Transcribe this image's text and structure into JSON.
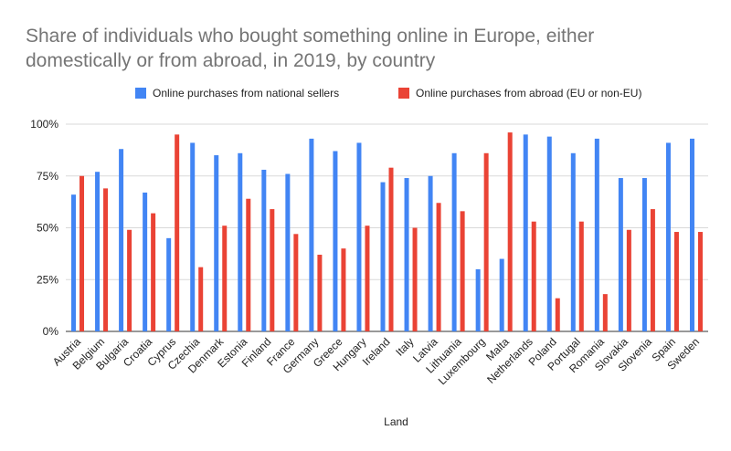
{
  "chart_data": {
    "type": "bar",
    "title": "Share of individuals who bought something online in Europe, either domestically or from abroad, in 2019, by country",
    "xlabel": "Land",
    "ylabel": "",
    "ylim": [
      0,
      100
    ],
    "yticks": [
      "0%",
      "25%",
      "50%",
      "75%",
      "100%"
    ],
    "ytick_values": [
      0,
      25,
      50,
      75,
      100
    ],
    "grid": true,
    "legend_position": "top",
    "categories": [
      "Austria",
      "Belgium",
      "Bulgaria",
      "Croatia",
      "Cyprus",
      "Czechia",
      "Denmark",
      "Estonia",
      "Finland",
      "France",
      "Germany",
      "Greece",
      "Hungary",
      "Ireland",
      "Italy",
      "Latvia",
      "Lithuania",
      "Luxembourg",
      "Malta",
      "Netherlands",
      "Poland",
      "Portugal",
      "Romania",
      "Slovakia",
      "Slovenia",
      "Spain",
      "Sweden"
    ],
    "series": [
      {
        "name": "Online purchases from national sellers",
        "color": "#4285f4",
        "values": [
          66,
          77,
          88,
          67,
          45,
          91,
          85,
          86,
          78,
          76,
          93,
          87,
          91,
          72,
          74,
          75,
          86,
          30,
          35,
          95,
          94,
          86,
          93,
          74,
          74,
          91,
          93
        ]
      },
      {
        "name": "Online purchases from abroad (EU or non-EU)",
        "color": "#ea4335",
        "values": [
          75,
          69,
          49,
          57,
          95,
          31,
          51,
          64,
          59,
          47,
          37,
          40,
          51,
          79,
          50,
          62,
          58,
          86,
          96,
          53,
          16,
          53,
          18,
          49,
          59,
          48,
          48
        ]
      }
    ]
  }
}
